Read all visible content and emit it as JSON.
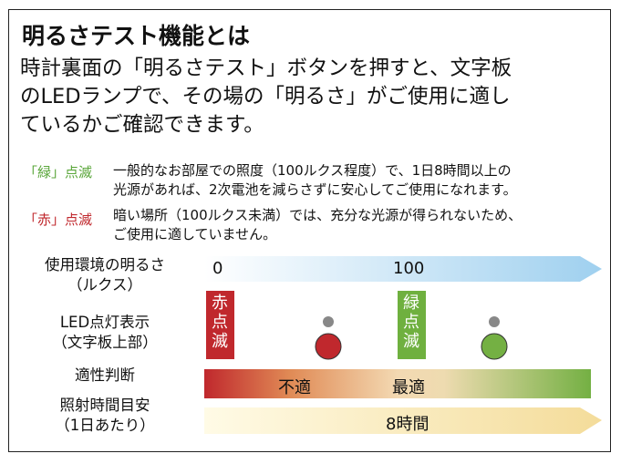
{
  "title": "明るさテスト機能とは",
  "intro": {
    "line1": "時計裏面の「明るさテスト」ボタンを押すと、文字板",
    "line2": "のLEDランプで、その場の「明るさ」がご使用に適し",
    "line3": "ているかご確認できます。"
  },
  "legend": {
    "green_label": "「緑」点滅",
    "green_line1": "一般的なお部屋での照度（100ルクス程度）で、1日8時間以上の",
    "green_line2": "光源があれば、2次電池を減らさずに安心してご使用になれます。",
    "red_label": "「赤」点滅",
    "red_line1": "暗い場所（100ルクス未満）では、充分な光源が得られないため、",
    "red_line2": "ご使用に適していません。"
  },
  "rows": {
    "environment_line1": "使用環境の明るさ",
    "environment_line2": "（ルクス）",
    "led_line1": "LED点灯表示",
    "led_line2": "（文字板上部）",
    "suitability": "適性判断",
    "hours_line1": "照射時間目安",
    "hours_line2": "（1日あたり）"
  },
  "scale": {
    "lux_0": "0",
    "lux_100": "100",
    "red_flash_vertical": "赤点滅",
    "green_flash_vertical": "緑点滅",
    "unsuitable": "不適",
    "optimal": "最適",
    "hours": "8時間"
  },
  "colors": {
    "red": "#c0282d",
    "green": "#6fb03f",
    "light_blue": "#a6d3f0",
    "cream": "#f6e3a6",
    "gray_dot": "#888888"
  }
}
